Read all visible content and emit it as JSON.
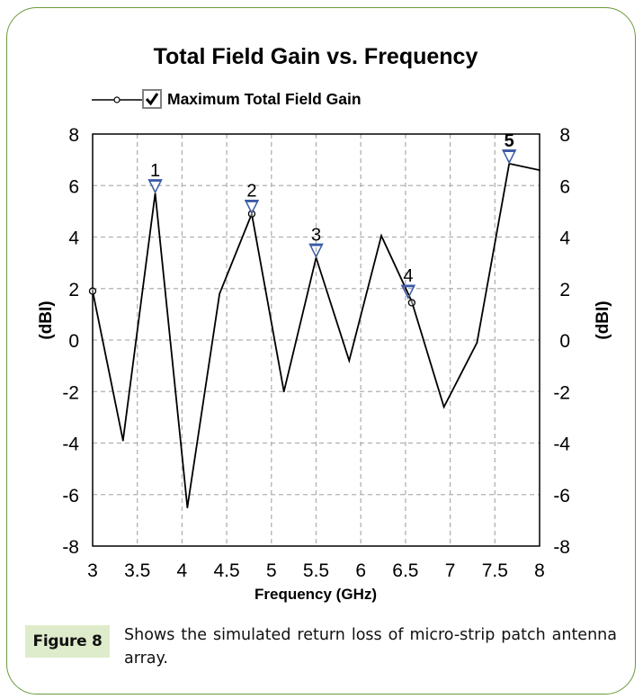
{
  "figure": {
    "label": "Figure 8",
    "caption": "Shows the simulated return loss of micro-strip patch antenna array."
  },
  "colors": {
    "frame_border": "#6a9a3c",
    "label_bg": "#dfeccb",
    "series_line": "#000000",
    "marker_triangle": "#3a5aa8",
    "grid": "#b0b0b0"
  },
  "chart_data": {
    "type": "line",
    "title": "Total Field Gain vs. Frequency",
    "xlabel": "Frequency (GHz)",
    "ylabel": "(dBI)",
    "ylabel_right": "(dBI)",
    "xlim": [
      3,
      8
    ],
    "ylim": [
      -8,
      8
    ],
    "grid": true,
    "legend_position": "top-left",
    "x_ticks": [
      "3",
      "3.5",
      "4",
      "4.5",
      "5",
      "5.5",
      "6",
      "6.5",
      "7",
      "7.5",
      "8"
    ],
    "x_tick_values": [
      3,
      3.5,
      4,
      4.5,
      5,
      5.5,
      6,
      6.5,
      7,
      7.5,
      8
    ],
    "y_ticks": [
      "8",
      "6",
      "4",
      "2",
      "0",
      "-2",
      "-4",
      "-6",
      "-8"
    ],
    "y_tick_values": [
      8,
      6,
      4,
      2,
      0,
      -2,
      -4,
      -6,
      -8
    ],
    "series": [
      {
        "name": "Maximum Total Field Gain",
        "checked": true,
        "x": [
          3.0,
          3.34,
          3.7,
          4.06,
          4.42,
          4.78,
          5.14,
          5.5,
          5.87,
          6.23,
          6.57,
          6.93,
          7.3,
          7.66,
          8.0
        ],
        "values": [
          1.9,
          -3.9,
          5.7,
          -6.5,
          1.8,
          4.9,
          -2.0,
          3.2,
          -0.8,
          4.05,
          1.5,
          -2.6,
          -0.1,
          6.85,
          6.6
        ],
        "circle_markers": [
          {
            "x": 3.0,
            "y": 1.9
          },
          {
            "x": 4.78,
            "y": 4.9
          },
          {
            "x": 6.57,
            "y": 1.45
          }
        ]
      }
    ],
    "markers": [
      {
        "label": "1",
        "x": 3.7,
        "y": 5.7
      },
      {
        "label": "2",
        "x": 4.78,
        "y": 4.9
      },
      {
        "label": "3",
        "x": 5.5,
        "y": 3.2
      },
      {
        "label": "4",
        "x": 6.53,
        "y": 1.6
      },
      {
        "label": "5",
        "x": 7.66,
        "y": 6.85
      }
    ]
  }
}
